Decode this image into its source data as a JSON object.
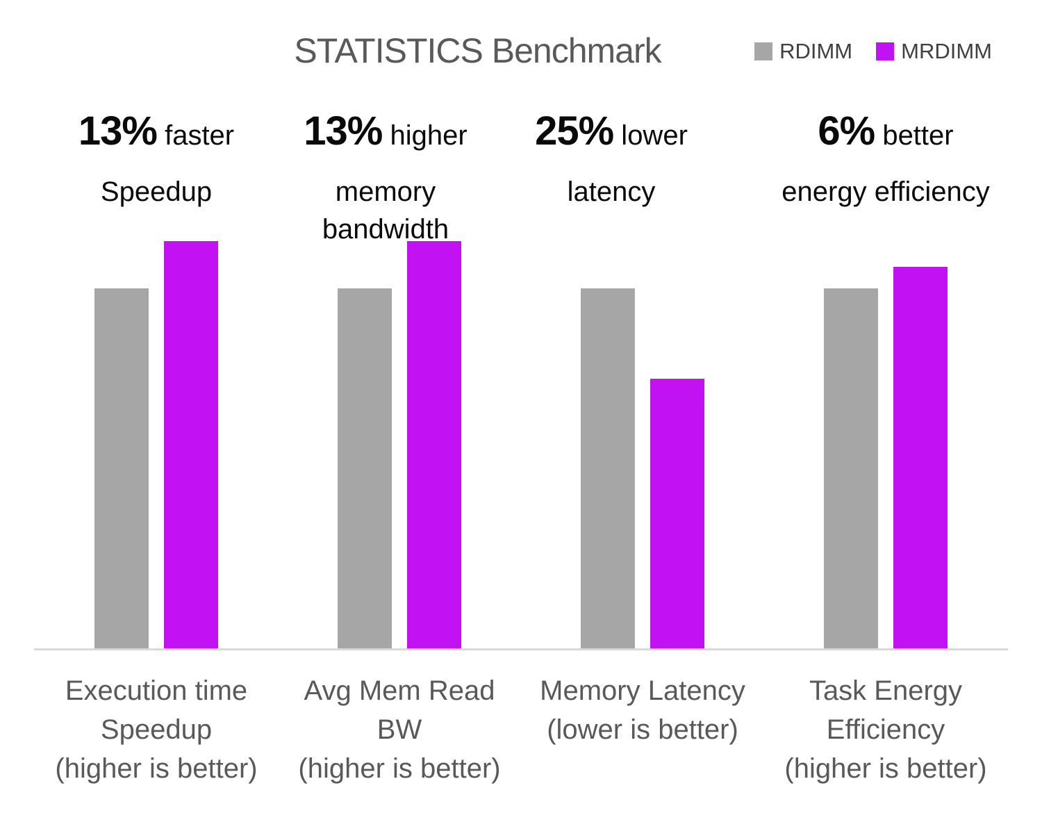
{
  "title": "STATISTICS Benchmark",
  "legend": [
    {
      "label": "RDIMM",
      "color": "#a6a6a6"
    },
    {
      "label": "MRDIMM",
      "color": "#c211f3"
    }
  ],
  "chart_data": {
    "type": "bar",
    "title": "STATISTICS Benchmark",
    "categories": [
      [
        "Execution time",
        "Speedup",
        "(higher is better)"
      ],
      [
        "Avg Mem Read BW",
        "(higher is better)"
      ],
      [
        "Memory Latency",
        "(lower is better)"
      ],
      [
        "Task Energy",
        "Efficiency",
        "(higher is better)"
      ]
    ],
    "series": [
      {
        "name": "RDIMM",
        "color": "#a6a6a6",
        "values": [
          1.0,
          1.0,
          1.0,
          1.0
        ]
      },
      {
        "name": "MRDIMM",
        "color": "#c211f3",
        "values": [
          1.13,
          1.13,
          0.75,
          1.06
        ]
      }
    ],
    "annotations": [
      {
        "stat": "13%",
        "suffix": "faster",
        "lines": [
          "Speedup"
        ]
      },
      {
        "stat": "13%",
        "suffix": "higher",
        "lines": [
          "memory",
          "bandwidth"
        ]
      },
      {
        "stat": "25%",
        "suffix": "lower",
        "lines": [
          "latency"
        ]
      },
      {
        "stat": "6%",
        "suffix": "better",
        "lines": [
          "energy efficiency"
        ]
      }
    ],
    "ylabel": "",
    "xlabel": "",
    "ylim": [
      0,
      1.25
    ],
    "grid": false,
    "legend_position": "top-right",
    "baseline_color": "#d9d9d9",
    "title_color": "#595959",
    "axis_label_color": "#595959",
    "annotation_color": "#0a0a0a"
  }
}
